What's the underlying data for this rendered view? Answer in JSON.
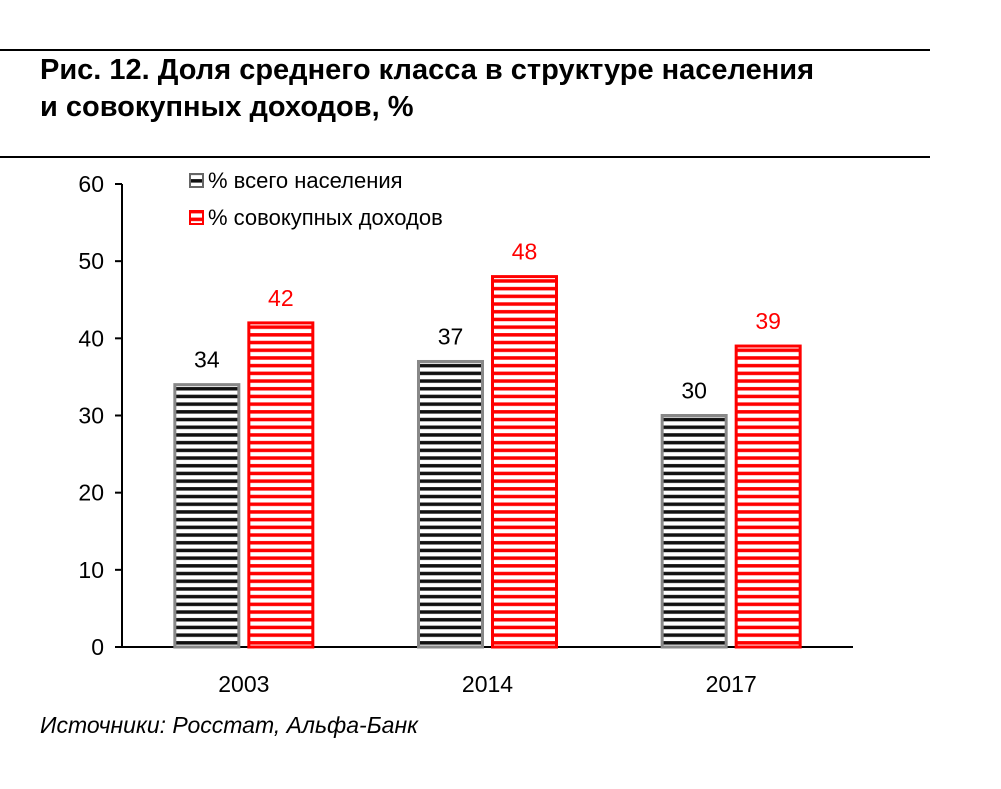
{
  "title_line1": "Рис. 12. Доля среднего класса в структуре населения",
  "title_line2": "и совокупных доходов, %",
  "source": "Источники: Росстат, Альфа-Банк",
  "chart_data": {
    "type": "bar",
    "title": "Доля среднего класса в структуре населения и совокупных доходов, %",
    "xlabel": "",
    "ylabel": "",
    "categories": [
      "2003",
      "2014",
      "2017"
    ],
    "series": [
      {
        "name": "% всего населения",
        "values": [
          34,
          37,
          30
        ],
        "color": "#808080"
      },
      {
        "name": "% совокупных доходов",
        "values": [
          42,
          48,
          39
        ],
        "color": "#ff0000"
      }
    ],
    "ylim": [
      0,
      60
    ],
    "yticks": [
      0,
      10,
      20,
      30,
      40,
      50,
      60
    ],
    "legend": "top-left",
    "grid": false
  }
}
